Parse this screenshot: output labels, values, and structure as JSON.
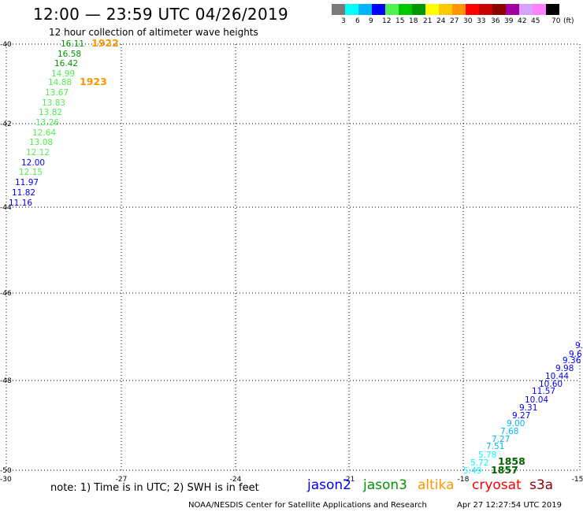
{
  "title": "12:00 — 23:59 UTC 04/26/2019",
  "subtitle": "12 hour collection of altimeter wave heights",
  "colorbar": {
    "colors": [
      "#7a7a7a",
      "#00ffff",
      "#00b4ff",
      "#0000ff",
      "#4ff04f",
      "#00c800",
      "#009600",
      "#ffff00",
      "#ffc800",
      "#ff9600",
      "#ff0000",
      "#c80000",
      "#8b0000",
      "#a000a0",
      "#d8a0ff",
      "#ff80ff",
      "#000000"
    ],
    "labels": [
      "3",
      "6",
      "9",
      "12",
      "15",
      "18",
      "21",
      "24",
      "27",
      "30",
      "33",
      "36",
      "39",
      "42",
      "45",
      "70",
      "(ft)"
    ]
  },
  "axes": {
    "lon_labels": [
      "-27",
      "-24",
      "-21",
      "-18",
      "-15"
    ],
    "lat_labels": [
      "-40",
      "-42",
      "-44",
      "-46",
      "-48",
      "-50"
    ],
    "corner_label": "-30"
  },
  "tracks": [
    {
      "name": "upper-track",
      "points": [
        {
          "text": "16.11",
          "color": "#009600"
        },
        {
          "text": "16.58",
          "color": "#009600"
        },
        {
          "text": "16.42",
          "color": "#009600"
        },
        {
          "text": "14.99",
          "color": "#4ff04f"
        },
        {
          "text": "14.88",
          "color": "#4ff04f"
        },
        {
          "text": "13.67",
          "color": "#4ff04f"
        },
        {
          "text": "13.83",
          "color": "#4ff04f"
        },
        {
          "text": "13.82",
          "color": "#4ff04f"
        },
        {
          "text": "13.26",
          "color": "#4ff04f"
        },
        {
          "text": "12.64",
          "color": "#4ff04f"
        },
        {
          "text": "13.08",
          "color": "#4ff04f"
        },
        {
          "text": "12.12",
          "color": "#4ff04f"
        },
        {
          "text": "12.00",
          "color": "#0000ff"
        },
        {
          "text": "12.15",
          "color": "#4ff04f"
        },
        {
          "text": "11.97",
          "color": "#0000ff"
        },
        {
          "text": "11.82",
          "color": "#0000ff"
        },
        {
          "text": "11.16",
          "color": "#0000ff"
        }
      ],
      "time_labels": [
        {
          "text": "1922",
          "color": "#ff9600"
        },
        {
          "text": "1923",
          "color": "#ff9600"
        }
      ]
    },
    {
      "name": "lower-track",
      "points": [
        {
          "text": "9.",
          "color": "#0000ff"
        },
        {
          "text": "9.6",
          "color": "#0000ff"
        },
        {
          "text": "9.36",
          "color": "#0000ff"
        },
        {
          "text": "9.98",
          "color": "#0000ff"
        },
        {
          "text": "10.44",
          "color": "#0000ff"
        },
        {
          "text": "10.60",
          "color": "#0000ff"
        },
        {
          "text": "11.57",
          "color": "#0000ff"
        },
        {
          "text": "10.04",
          "color": "#0000ff"
        },
        {
          "text": "9.31",
          "color": "#0000ff"
        },
        {
          "text": "9.27",
          "color": "#0000ff"
        },
        {
          "text": "9.00",
          "color": "#00b4ff"
        },
        {
          "text": "7.68",
          "color": "#00b4ff"
        },
        {
          "text": "7.27",
          "color": "#00b4ff"
        },
        {
          "text": "7.51",
          "color": "#00b4ff"
        },
        {
          "text": "5.78",
          "color": "#00ffff"
        },
        {
          "text": "5.72",
          "color": "#00ffff"
        },
        {
          "text": "5.49",
          "color": "#00ffff"
        }
      ],
      "time_labels": [
        {
          "text": "1858",
          "color": "#006400"
        },
        {
          "text": "1857",
          "color": "#006400"
        }
      ]
    }
  ],
  "note": "note: 1) Time is in UTC; 2) SWH is in feet",
  "missions": [
    {
      "label": "jason2",
      "color": "#0000ff"
    },
    {
      "label": "jason3",
      "color": "#009600"
    },
    {
      "label": "altika",
      "color": "#ff9600"
    },
    {
      "label": "cryosat",
      "color": "#ff0000"
    },
    {
      "label": "s3a",
      "color": "#8b0000"
    }
  ],
  "credit": "NOAA/NESDIS Center for Satellite Applications and Research",
  "timestamp": "Apr 27 12:27:54 UTC 2019"
}
